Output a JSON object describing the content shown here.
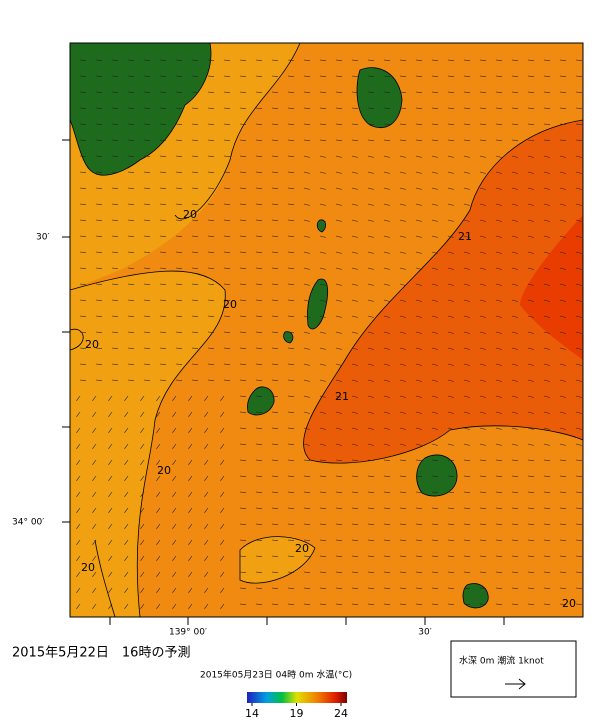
{
  "map": {
    "lat_labels": [
      "30′",
      "34° 00′"
    ],
    "lon_labels": [
      "139° 00′",
      "30′"
    ],
    "contour_labels": [
      "20",
      "21",
      "20",
      "20",
      "21",
      "20",
      "20",
      "20",
      "20"
    ],
    "title": "2015年5月22日　16時の予測",
    "subtitle": "2015年05月23日 04時 0m 水温(°C)",
    "colorbar": {
      "ticks": [
        14,
        19,
        24
      ]
    },
    "legend": "水深 0m 潮流 1knot"
  }
}
